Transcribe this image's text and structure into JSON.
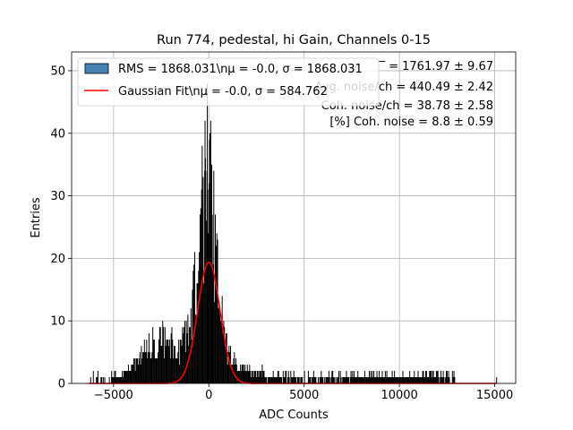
{
  "chart_data": {
    "type": "bar",
    "title": "Run 774, pedestal, hi Gain, Channels 0-15",
    "xlabel": "ADC Counts",
    "ylabel": "Entries",
    "xlim": [
      -7200,
      16100
    ],
    "ylim": [
      0,
      53
    ],
    "xticks": [
      -5000,
      0,
      5000,
      10000,
      15000
    ],
    "xtick_labels": [
      "−5000",
      "0",
      "5000",
      "10000",
      "15000"
    ],
    "yticks": [
      0,
      10,
      20,
      30,
      40,
      50
    ],
    "ytick_labels": [
      "0",
      "10",
      "20",
      "30",
      "40",
      "50"
    ],
    "grid": true,
    "legend_position": "top-left",
    "series": [
      {
        "name": "RMS = 1868.031\\nμ = -0.0, σ = 1868.031",
        "kind": "histogram",
        "color": "#4682b4",
        "edge_color": "#000000",
        "bin_width": 40,
        "profile": [
          [
            -6300,
            0
          ],
          [
            -5200,
            0.6
          ],
          [
            -4500,
            1.5
          ],
          [
            -3900,
            3
          ],
          [
            -3500,
            5
          ],
          [
            -3000,
            6.5
          ],
          [
            -2500,
            7
          ],
          [
            -2000,
            6.5
          ],
          [
            -1600,
            6
          ],
          [
            -1200,
            8
          ],
          [
            -900,
            12
          ],
          [
            -600,
            17
          ],
          [
            -300,
            25
          ],
          [
            -100,
            31
          ],
          [
            0,
            34
          ],
          [
            150,
            29
          ],
          [
            350,
            22
          ],
          [
            600,
            13
          ],
          [
            900,
            6
          ],
          [
            1300,
            3.5
          ],
          [
            2000,
            2
          ],
          [
            3000,
            1
          ],
          [
            5000,
            0.6
          ],
          [
            8000,
            1
          ],
          [
            10000,
            1.3
          ],
          [
            12000,
            1
          ],
          [
            12900,
            0.6
          ],
          [
            13000,
            0
          ]
        ],
        "spikes": [
          [
            -6200,
            1
          ],
          [
            -5100,
            1
          ],
          [
            -80,
            48
          ],
          [
            40,
            39
          ],
          [
            -200,
            42
          ],
          [
            150,
            35
          ],
          [
            -350,
            38
          ],
          [
            2800,
            3
          ],
          [
            6300,
            2
          ],
          [
            15100,
            1
          ]
        ]
      },
      {
        "name": "Gaussian Fit\\nμ = -0.0, σ = 584.762",
        "kind": "line",
        "color": "#ff0000",
        "mu": 0,
        "sigma": 584.762,
        "amplitude": 19.4,
        "x_range": [
          -6300,
          15100
        ]
      }
    ],
    "annotations": [
      "̅ = 1761.97 ± 9.67",
      "Avg. noise/ch = 440.49 ± 2.42",
      "Coh. noise/ch = 38.78 ± 2.58",
      "[%] Coh. noise = 8.8 ± 0.59"
    ]
  }
}
